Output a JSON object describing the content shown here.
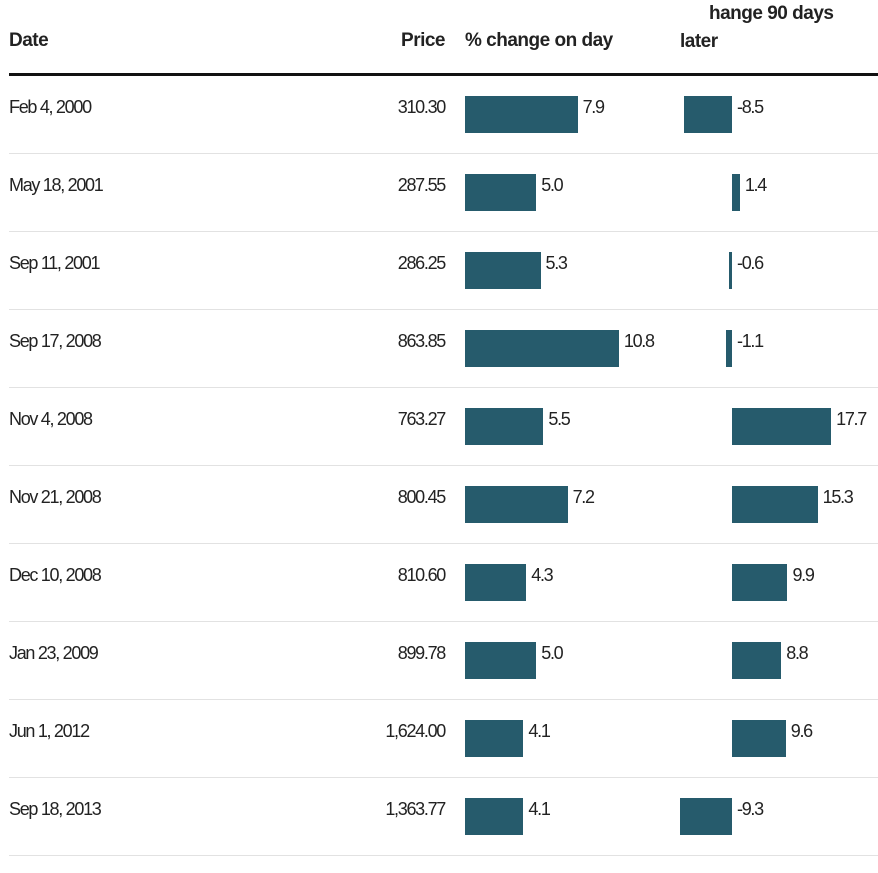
{
  "headers": {
    "date": "Date",
    "price": "Price",
    "change_day": "% change on day",
    "change_90_line1": "hange 90 days",
    "change_90_line2": "later"
  },
  "chart_data": {
    "type": "table",
    "columns": [
      "Date",
      "Price",
      "% change on day",
      "hange 90 days later"
    ],
    "colors": {
      "bar": "#265b6c"
    },
    "rows": [
      {
        "date": "Feb 4, 2000",
        "price": "310.30",
        "change_day": 7.9,
        "change_90": -8.5
      },
      {
        "date": "May 18, 2001",
        "price": "287.55",
        "change_day": 5.0,
        "change_90": 1.4
      },
      {
        "date": "Sep 11, 2001",
        "price": "286.25",
        "change_day": 5.3,
        "change_90": -0.6
      },
      {
        "date": "Sep 17, 2008",
        "price": "863.85",
        "change_day": 10.8,
        "change_90": -1.1
      },
      {
        "date": "Nov 4, 2008",
        "price": "763.27",
        "change_day": 5.5,
        "change_90": 17.7
      },
      {
        "date": "Nov 21, 2008",
        "price": "800.45",
        "change_day": 7.2,
        "change_90": 15.3
      },
      {
        "date": "Dec 10, 2008",
        "price": "810.60",
        "change_day": 4.3,
        "change_90": 9.9
      },
      {
        "date": "Jan 23, 2009",
        "price": "899.78",
        "change_day": 5.0,
        "change_90": 8.8
      },
      {
        "date": "Jun 1, 2012",
        "price": "1,624.00",
        "change_day": 4.1,
        "change_90": 9.6
      },
      {
        "date": "Sep 18, 2013",
        "price": "1,363.77",
        "change_day": 4.1,
        "change_90": -9.3
      }
    ]
  }
}
